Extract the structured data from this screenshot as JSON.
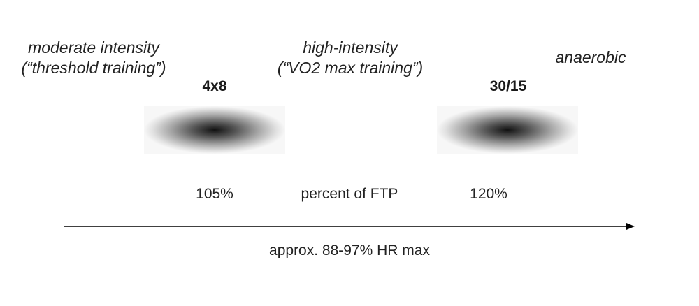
{
  "zones": {
    "moderate": {
      "line1": "moderate intensity",
      "line2": "(“threshold training”)"
    },
    "high": {
      "line1": "high-intensity",
      "line2": "(“VO2 max training”)"
    },
    "anaerobic": {
      "line1": "anaerobic"
    }
  },
  "workouts": {
    "w1": {
      "label": "4x8",
      "percent": "105%"
    },
    "w2": {
      "label": "30/15",
      "percent": "120%"
    }
  },
  "axis": {
    "ftp_label": "percent of FTP",
    "hr_label": "approx. 88-97% HR max"
  }
}
